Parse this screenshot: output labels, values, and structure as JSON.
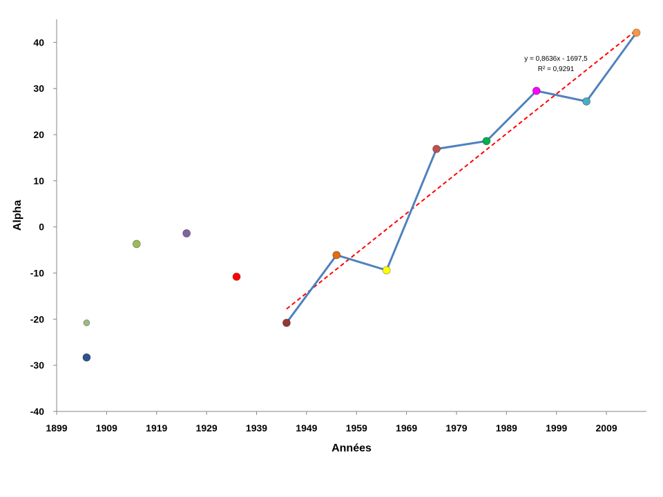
{
  "chart_data": {
    "type": "scatter",
    "title": "",
    "xlabel": "Années",
    "ylabel": "Alpha",
    "xlim": [
      1899,
      2017
    ],
    "ylim": [
      -40,
      45
    ],
    "x_ticks": [
      1899,
      1909,
      1919,
      1929,
      1939,
      1949,
      1959,
      1969,
      1979,
      1989,
      1999,
      2009
    ],
    "y_ticks": [
      -40,
      -30,
      -20,
      -10,
      0,
      10,
      20,
      30,
      40
    ],
    "grid": false,
    "legend": "none",
    "points": [
      {
        "x": 1905,
        "y": -20.8,
        "color": "#9BBB7F",
        "small": true
      },
      {
        "x": 1905,
        "y": -28.3,
        "color": "#2F528F"
      },
      {
        "x": 1915,
        "y": -3.7,
        "color": "#9BBB59"
      },
      {
        "x": 1925,
        "y": -1.4,
        "color": "#8064A2"
      },
      {
        "x": 1935,
        "y": -10.8,
        "color": "#FF0000"
      },
      {
        "x": 1945,
        "y": -20.8,
        "color": "#953735"
      },
      {
        "x": 1955,
        "y": -6.1,
        "color": "#E46C0A"
      },
      {
        "x": 1965,
        "y": -9.4,
        "color": "#FFFF00"
      },
      {
        "x": 1975,
        "y": 16.9,
        "color": "#C0504D"
      },
      {
        "x": 1985,
        "y": 18.6,
        "color": "#00B050"
      },
      {
        "x": 1995,
        "y": 29.5,
        "color": "#FF00FF"
      },
      {
        "x": 2005,
        "y": 27.2,
        "color": "#4BACC6"
      },
      {
        "x": 2015,
        "y": 42.1,
        "color": "#F79646"
      }
    ],
    "line_series": {
      "color": "#4F81BD",
      "x": [
        1945,
        1955,
        1965,
        1975,
        1985,
        1995,
        2005,
        2015
      ],
      "y": [
        -20.8,
        -6.1,
        -9.4,
        16.9,
        18.6,
        29.5,
        27.2,
        42.1
      ]
    },
    "trendline": {
      "color": "#FF0000",
      "style": "dashed",
      "slope": 0.8636,
      "intercept": -1697.5,
      "x_range": [
        1945,
        2015
      ],
      "equation": "y = 0,8636x - 1697,5",
      "r_squared": "R² = 0,9291"
    }
  }
}
